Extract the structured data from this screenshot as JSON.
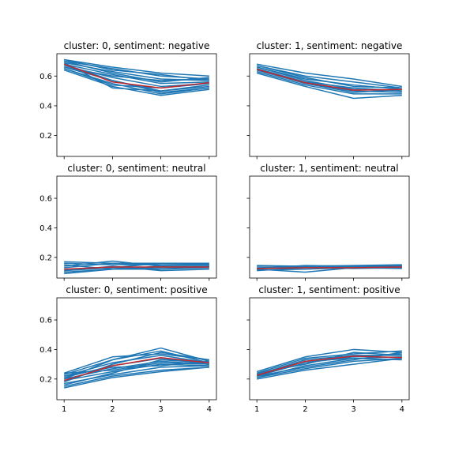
{
  "colors": {
    "sample_line": "#1f77b4",
    "mean_line": "#c0282d",
    "axes": "#000000",
    "background": "#ffffff"
  },
  "chart_data": [
    {
      "type": "line",
      "title": "cluster: 0, sentiment: negative",
      "x": [
        1,
        2,
        3,
        4
      ],
      "xticks": [
        1,
        2,
        3,
        4
      ],
      "yticks": [
        0.2,
        0.4,
        0.6
      ],
      "ylim": [
        0.06,
        0.75
      ],
      "xlim": [
        0.85,
        4.15
      ],
      "show_xticklabels": false,
      "show_yticklabels": true,
      "mean": [
        0.68,
        0.56,
        0.52,
        0.555
      ],
      "series": [
        {
          "values": [
            0.71,
            0.66,
            0.62,
            0.6
          ]
        },
        {
          "values": [
            0.7,
            0.65,
            0.6,
            0.58
          ]
        },
        {
          "values": [
            0.69,
            0.63,
            0.58,
            0.57
          ]
        },
        {
          "values": [
            0.68,
            0.61,
            0.55,
            0.56
          ]
        },
        {
          "values": [
            0.67,
            0.59,
            0.53,
            0.55
          ]
        },
        {
          "values": [
            0.66,
            0.57,
            0.5,
            0.53
          ]
        },
        {
          "values": [
            0.65,
            0.55,
            0.48,
            0.52
          ]
        },
        {
          "values": [
            0.64,
            0.53,
            0.47,
            0.51
          ]
        },
        {
          "values": [
            0.7,
            0.62,
            0.56,
            0.59
          ]
        },
        {
          "values": [
            0.69,
            0.52,
            0.5,
            0.54
          ]
        },
        {
          "values": [
            0.66,
            0.6,
            0.57,
            0.58
          ]
        },
        {
          "values": [
            0.68,
            0.57,
            0.49,
            0.52
          ]
        },
        {
          "values": [
            0.71,
            0.64,
            0.61,
            0.57
          ]
        },
        {
          "values": [
            0.65,
            0.54,
            0.52,
            0.55
          ]
        }
      ]
    },
    {
      "type": "line",
      "title": "cluster: 1, sentiment: negative",
      "x": [
        1,
        2,
        3,
        4
      ],
      "xticks": [
        1,
        2,
        3,
        4
      ],
      "yticks": [
        0.2,
        0.4,
        0.6
      ],
      "ylim": [
        0.06,
        0.75
      ],
      "xlim": [
        0.85,
        4.15
      ],
      "show_xticklabels": false,
      "show_yticklabels": false,
      "mean": [
        0.645,
        0.555,
        0.505,
        0.51
      ],
      "series": [
        {
          "values": [
            0.68,
            0.62,
            0.58,
            0.53
          ]
        },
        {
          "values": [
            0.67,
            0.6,
            0.56,
            0.52
          ]
        },
        {
          "values": [
            0.66,
            0.58,
            0.54,
            0.51
          ]
        },
        {
          "values": [
            0.65,
            0.56,
            0.52,
            0.5
          ]
        },
        {
          "values": [
            0.64,
            0.55,
            0.5,
            0.49
          ]
        },
        {
          "values": [
            0.63,
            0.54,
            0.48,
            0.48
          ]
        },
        {
          "values": [
            0.62,
            0.53,
            0.45,
            0.47
          ]
        },
        {
          "values": [
            0.66,
            0.57,
            0.51,
            0.5
          ]
        },
        {
          "values": [
            0.67,
            0.59,
            0.53,
            0.52
          ]
        },
        {
          "values": [
            0.65,
            0.55,
            0.49,
            0.51
          ]
        }
      ]
    },
    {
      "type": "line",
      "title": "cluster: 0, sentiment: neutral",
      "x": [
        1,
        2,
        3,
        4
      ],
      "xticks": [
        1,
        2,
        3,
        4
      ],
      "yticks": [
        0.2,
        0.4,
        0.6
      ],
      "ylim": [
        0.06,
        0.75
      ],
      "xlim": [
        0.85,
        4.15
      ],
      "show_xticklabels": false,
      "show_yticklabels": true,
      "mean": [
        0.12,
        0.135,
        0.135,
        0.135
      ],
      "series": [
        {
          "values": [
            0.17,
            0.16,
            0.16,
            0.155
          ]
        },
        {
          "values": [
            0.16,
            0.15,
            0.15,
            0.15
          ]
        },
        {
          "values": [
            0.14,
            0.175,
            0.14,
            0.14
          ]
        },
        {
          "values": [
            0.12,
            0.13,
            0.13,
            0.13
          ]
        },
        {
          "values": [
            0.1,
            0.12,
            0.14,
            0.14
          ]
        },
        {
          "values": [
            0.11,
            0.14,
            0.11,
            0.12
          ]
        },
        {
          "values": [
            0.13,
            0.16,
            0.15,
            0.15
          ]
        },
        {
          "values": [
            0.09,
            0.12,
            0.12,
            0.13
          ]
        },
        {
          "values": [
            0.11,
            0.13,
            0.16,
            0.16
          ]
        },
        {
          "values": [
            0.15,
            0.12,
            0.13,
            0.14
          ]
        }
      ]
    },
    {
      "type": "line",
      "title": "cluster: 1, sentiment: neutral",
      "x": [
        1,
        2,
        3,
        4
      ],
      "xticks": [
        1,
        2,
        3,
        4
      ],
      "yticks": [
        0.2,
        0.4,
        0.6
      ],
      "ylim": [
        0.06,
        0.75
      ],
      "xlim": [
        0.85,
        4.15
      ],
      "show_xticklabels": false,
      "show_yticklabels": false,
      "mean": [
        0.125,
        0.13,
        0.13,
        0.135
      ],
      "series": [
        {
          "values": [
            0.145,
            0.14,
            0.145,
            0.15
          ]
        },
        {
          "values": [
            0.14,
            0.14,
            0.14,
            0.145
          ]
        },
        {
          "values": [
            0.13,
            0.135,
            0.135,
            0.14
          ]
        },
        {
          "values": [
            0.12,
            0.1,
            0.13,
            0.135
          ]
        },
        {
          "values": [
            0.11,
            0.13,
            0.125,
            0.13
          ]
        },
        {
          "values": [
            0.115,
            0.12,
            0.13,
            0.125
          ]
        },
        {
          "values": [
            0.125,
            0.145,
            0.14,
            0.14
          ]
        }
      ]
    },
    {
      "type": "line",
      "title": "cluster: 0, sentiment: positive",
      "x": [
        1,
        2,
        3,
        4
      ],
      "xticks": [
        1,
        2,
        3,
        4
      ],
      "yticks": [
        0.2,
        0.4,
        0.6
      ],
      "ylim": [
        0.06,
        0.75
      ],
      "xlim": [
        0.85,
        4.15
      ],
      "show_xticklabels": true,
      "show_yticklabels": true,
      "mean": [
        0.19,
        0.29,
        0.345,
        0.31
      ],
      "series": [
        {
          "values": [
            0.24,
            0.35,
            0.37,
            0.33
          ]
        },
        {
          "values": [
            0.23,
            0.33,
            0.41,
            0.32
          ]
        },
        {
          "values": [
            0.22,
            0.31,
            0.36,
            0.31
          ]
        },
        {
          "values": [
            0.21,
            0.29,
            0.34,
            0.3
          ]
        },
        {
          "values": [
            0.2,
            0.27,
            0.32,
            0.3
          ]
        },
        {
          "values": [
            0.19,
            0.25,
            0.3,
            0.29
          ]
        },
        {
          "values": [
            0.17,
            0.23,
            0.28,
            0.29
          ]
        },
        {
          "values": [
            0.15,
            0.22,
            0.26,
            0.28
          ]
        },
        {
          "values": [
            0.14,
            0.21,
            0.25,
            0.28
          ]
        },
        {
          "values": [
            0.18,
            0.3,
            0.38,
            0.33
          ]
        },
        {
          "values": [
            0.16,
            0.24,
            0.33,
            0.31
          ]
        },
        {
          "values": [
            0.22,
            0.28,
            0.29,
            0.32
          ]
        },
        {
          "values": [
            0.2,
            0.33,
            0.39,
            0.31
          ]
        },
        {
          "values": [
            0.24,
            0.26,
            0.31,
            0.3
          ]
        }
      ]
    },
    {
      "type": "line",
      "title": "cluster: 1, sentiment: positive",
      "x": [
        1,
        2,
        3,
        4
      ],
      "xticks": [
        1,
        2,
        3,
        4
      ],
      "yticks": [
        0.2,
        0.4,
        0.6
      ],
      "ylim": [
        0.06,
        0.75
      ],
      "xlim": [
        0.85,
        4.15
      ],
      "show_xticklabels": true,
      "show_yticklabels": false,
      "mean": [
        0.225,
        0.32,
        0.355,
        0.345
      ],
      "series": [
        {
          "values": [
            0.25,
            0.35,
            0.4,
            0.38
          ]
        },
        {
          "values": [
            0.24,
            0.34,
            0.37,
            0.39
          ]
        },
        {
          "values": [
            0.23,
            0.33,
            0.36,
            0.36
          ]
        },
        {
          "values": [
            0.22,
            0.31,
            0.35,
            0.37
          ]
        },
        {
          "values": [
            0.21,
            0.29,
            0.34,
            0.35
          ]
        },
        {
          "values": [
            0.21,
            0.27,
            0.32,
            0.34
          ]
        },
        {
          "values": [
            0.2,
            0.26,
            0.3,
            0.34
          ]
        },
        {
          "values": [
            0.24,
            0.3,
            0.38,
            0.36
          ]
        },
        {
          "values": [
            0.22,
            0.28,
            0.33,
            0.38
          ]
        },
        {
          "values": [
            0.23,
            0.32,
            0.34,
            0.33
          ]
        }
      ]
    }
  ]
}
